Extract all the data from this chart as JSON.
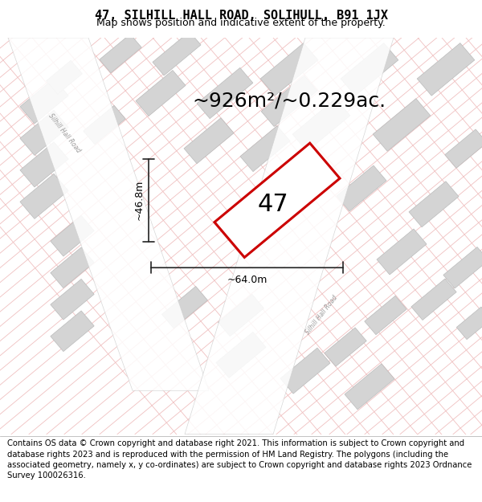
{
  "title": "47, SILHILL HALL ROAD, SOLIHULL, B91 1JX",
  "subtitle": "Map shows position and indicative extent of the property.",
  "footer": "Contains OS data © Crown copyright and database right 2021. This information is subject to Crown copyright and database rights 2023 and is reproduced with the permission of HM Land Registry. The polygons (including the associated geometry, namely x, y co-ordinates) are subject to Crown copyright and database rights 2023 Ordnance Survey 100026316.",
  "area_label": "~926m²/~0.229ac.",
  "property_number": "47",
  "dim_width": "~64.0m",
  "dim_height": "~46.8m",
  "map_bg": "#f2f2f2",
  "road_color_light": "#f0c0c0",
  "building_color": "#d4d4d4",
  "building_edge": "#bbbbbb",
  "property_fill": "white",
  "property_edge": "#cc0000",
  "dim_line_color": "#222222",
  "title_fontsize": 11,
  "subtitle_fontsize": 9,
  "footer_fontsize": 7.2,
  "area_fontsize": 18,
  "number_fontsize": 22,
  "road_label_color": "#999999"
}
